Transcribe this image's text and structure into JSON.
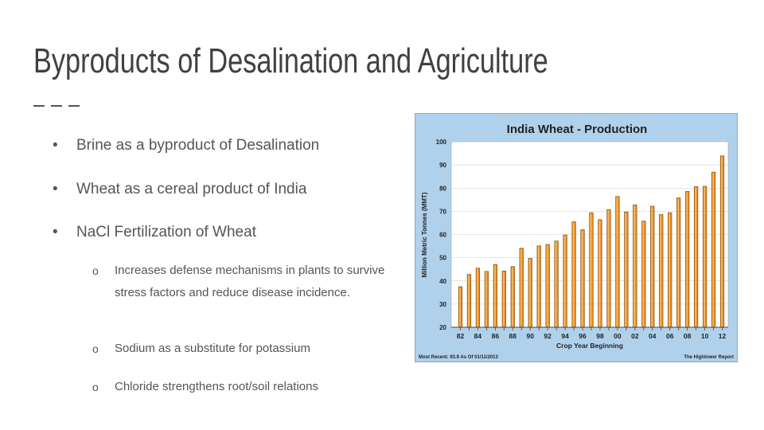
{
  "slide": {
    "title": "Byproducts of Desalination and Agriculture"
  },
  "bullets": [
    "Brine as a byproduct of Desalination",
    "Wheat as a cereal product of India",
    "NaCl Fertilization of Wheat"
  ],
  "sub_bullets": {
    "marker": "o",
    "defense": "Increases defense mechanisms in plants to survive stress factors and reduce disease incidence.",
    "sodium": "Sodium as a substitute for potassium",
    "chloride": "Chloride strengthens root/soil relations"
  },
  "bullet_marker": "•",
  "chart_data": {
    "type": "bar",
    "title": "India Wheat - Production",
    "ylabel": "Million Metric Tonnes (MMT)",
    "xlabel": "Crop Year Beginning",
    "footer_left": "Most Recent: 93.9 As Of 01/11/2013",
    "footer_right": "The Hightower Report",
    "ylim": [
      20,
      100
    ],
    "yticks": [
      20,
      30,
      40,
      50,
      60,
      70,
      80,
      90,
      100
    ],
    "xtick_labels": [
      "82",
      "84",
      "86",
      "88",
      "90",
      "92",
      "94",
      "96",
      "98",
      "00",
      "02",
      "04",
      "06",
      "08",
      "10",
      "12"
    ],
    "categories": [
      "82",
      "83",
      "84",
      "85",
      "86",
      "87",
      "88",
      "89",
      "90",
      "91",
      "92",
      "93",
      "94",
      "95",
      "96",
      "97",
      "98",
      "99",
      "00",
      "01",
      "02",
      "03",
      "04",
      "05",
      "06",
      "07",
      "08",
      "09",
      "10",
      "11",
      "12"
    ],
    "values": [
      37.5,
      42.8,
      45.5,
      44.1,
      47.1,
      44.3,
      46.2,
      54.1,
      49.7,
      55.1,
      55.7,
      57.2,
      59.8,
      65.5,
      62.1,
      69.4,
      66.4,
      70.8,
      76.4,
      69.7,
      72.8,
      65.8,
      72.2,
      68.6,
      69.4,
      75.8,
      78.6,
      80.7,
      80.8,
      86.9,
      93.9
    ],
    "colors": {
      "background": "#b0d1ec",
      "plot": "#ffffff",
      "bar": "#e68a1e",
      "bar_highlight": "#f6be6a",
      "grid": "#cccccc",
      "axis": "#444444"
    },
    "grid": true
  }
}
